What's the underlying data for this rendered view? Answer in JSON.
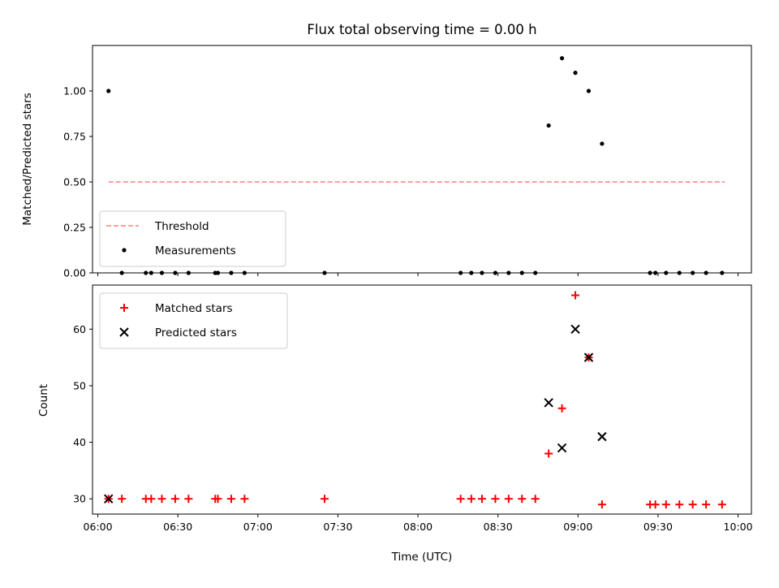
{
  "chart_data": [
    {
      "type": "scatter",
      "title": "Flux total observing time = 0.00 h",
      "xlabel": "",
      "ylabel": "Matched/Predicted stars",
      "ylim": [
        0,
        1.25
      ],
      "yticks": [
        0.0,
        0.25,
        0.5,
        0.75,
        1.0
      ],
      "ytick_labels": [
        "0.00",
        "0.25",
        "0.50",
        "0.75",
        "1.00"
      ],
      "xlim": [
        "05:58",
        "10:05"
      ],
      "grid": false,
      "legend_position": "lower-left",
      "threshold": {
        "name": "Threshold",
        "y": 0.5,
        "x_start": "06:04",
        "x_end": "09:55",
        "color": "#ff7f7f",
        "style": "dashed"
      },
      "series": [
        {
          "name": "Measurements",
          "color": "#000000",
          "marker": "dot",
          "points": [
            {
              "x": "06:04",
              "y": 1.0
            },
            {
              "x": "06:09",
              "y": 0.0
            },
            {
              "x": "06:18",
              "y": 0.0
            },
            {
              "x": "06:20",
              "y": 0.0
            },
            {
              "x": "06:24",
              "y": 0.0
            },
            {
              "x": "06:29",
              "y": 0.0
            },
            {
              "x": "06:34",
              "y": 0.0
            },
            {
              "x": "06:44",
              "y": 0.0
            },
            {
              "x": "06:45",
              "y": 0.0
            },
            {
              "x": "06:50",
              "y": 0.0
            },
            {
              "x": "06:55",
              "y": 0.0
            },
            {
              "x": "07:25",
              "y": 0.0
            },
            {
              "x": "08:16",
              "y": 0.0
            },
            {
              "x": "08:20",
              "y": 0.0
            },
            {
              "x": "08:24",
              "y": 0.0
            },
            {
              "x": "08:29",
              "y": 0.0
            },
            {
              "x": "08:34",
              "y": 0.0
            },
            {
              "x": "08:39",
              "y": 0.0
            },
            {
              "x": "08:44",
              "y": 0.0
            },
            {
              "x": "08:49",
              "y": 0.81
            },
            {
              "x": "08:54",
              "y": 1.18
            },
            {
              "x": "08:59",
              "y": 1.1
            },
            {
              "x": "09:04",
              "y": 1.0
            },
            {
              "x": "09:09",
              "y": 0.71
            },
            {
              "x": "09:27",
              "y": 0.0
            },
            {
              "x": "09:29",
              "y": 0.0
            },
            {
              "x": "09:33",
              "y": 0.0
            },
            {
              "x": "09:38",
              "y": 0.0
            },
            {
              "x": "09:43",
              "y": 0.0
            },
            {
              "x": "09:48",
              "y": 0.0
            },
            {
              "x": "09:54",
              "y": 0.0
            }
          ]
        }
      ]
    },
    {
      "type": "scatter",
      "title": "",
      "xlabel": "Time (UTC)",
      "ylabel": "Count",
      "ylim": [
        27.3,
        67.8
      ],
      "yticks": [
        30,
        40,
        50,
        60
      ],
      "ytick_labels": [
        "30",
        "40",
        "50",
        "60"
      ],
      "xlim": [
        "05:58",
        "10:05"
      ],
      "xticks": [
        "06:00",
        "06:30",
        "07:00",
        "07:30",
        "08:00",
        "08:30",
        "09:00",
        "09:30",
        "10:00"
      ],
      "xtick_labels": [
        "06:00",
        "06:30",
        "07:00",
        "07:30",
        "08:00",
        "08:30",
        "09:00",
        "09:30",
        "10:00"
      ],
      "grid": false,
      "legend_position": "upper-left",
      "series": [
        {
          "name": "Matched stars",
          "color": "#ff0000",
          "marker": "plus",
          "points": [
            {
              "x": "06:04",
              "y": 30
            },
            {
              "x": "06:09",
              "y": 30
            },
            {
              "x": "06:18",
              "y": 30
            },
            {
              "x": "06:20",
              "y": 30
            },
            {
              "x": "06:24",
              "y": 30
            },
            {
              "x": "06:29",
              "y": 30
            },
            {
              "x": "06:34",
              "y": 30
            },
            {
              "x": "06:44",
              "y": 30
            },
            {
              "x": "06:45",
              "y": 30
            },
            {
              "x": "06:50",
              "y": 30
            },
            {
              "x": "06:55",
              "y": 30
            },
            {
              "x": "07:25",
              "y": 30
            },
            {
              "x": "08:16",
              "y": 30
            },
            {
              "x": "08:20",
              "y": 30
            },
            {
              "x": "08:24",
              "y": 30
            },
            {
              "x": "08:29",
              "y": 30
            },
            {
              "x": "08:34",
              "y": 30
            },
            {
              "x": "08:39",
              "y": 30
            },
            {
              "x": "08:44",
              "y": 30
            },
            {
              "x": "08:49",
              "y": 38
            },
            {
              "x": "08:54",
              "y": 46
            },
            {
              "x": "08:59",
              "y": 66
            },
            {
              "x": "09:04",
              "y": 55
            },
            {
              "x": "09:09",
              "y": 29
            },
            {
              "x": "09:27",
              "y": 29
            },
            {
              "x": "09:29",
              "y": 29
            },
            {
              "x": "09:33",
              "y": 29
            },
            {
              "x": "09:38",
              "y": 29
            },
            {
              "x": "09:43",
              "y": 29
            },
            {
              "x": "09:48",
              "y": 29
            },
            {
              "x": "09:54",
              "y": 29
            }
          ]
        },
        {
          "name": "Predicted stars",
          "color": "#000000",
          "marker": "x",
          "points": [
            {
              "x": "06:04",
              "y": 30
            },
            {
              "x": "08:49",
              "y": 47
            },
            {
              "x": "08:54",
              "y": 39
            },
            {
              "x": "08:59",
              "y": 60
            },
            {
              "x": "09:04",
              "y": 55
            },
            {
              "x": "09:09",
              "y": 41
            }
          ]
        }
      ]
    }
  ]
}
